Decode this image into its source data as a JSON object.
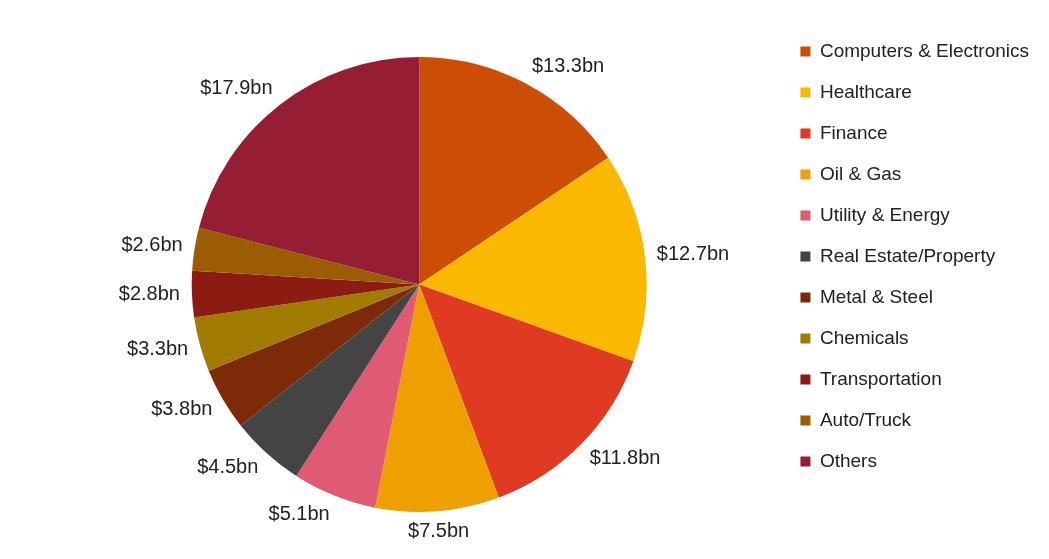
{
  "chart_data": {
    "type": "pie",
    "categories": [
      "Computers & Electronics",
      "Healthcare",
      "Finance",
      "Oil & Gas",
      "Utility & Energy",
      "Real Estate/Property",
      "Metal & Steel",
      "Chemicals",
      "Transportation",
      "Auto/Truck",
      "Others"
    ],
    "values": [
      13.3,
      12.7,
      11.8,
      7.5,
      5.1,
      4.5,
      3.8,
      3.3,
      2.8,
      2.6,
      17.9
    ],
    "value_labels": [
      "$13.3bn",
      "$12.7bn",
      "$11.8bn",
      "$7.5bn",
      "$5.1bn",
      "$4.5bn",
      "$3.8bn",
      "$3.3bn",
      "$2.8bn",
      "$2.6bn",
      "$17.9bn"
    ],
    "colors": [
      "#cc4e06",
      "#fbb800",
      "#e03a22",
      "#eea000",
      "#df5a72",
      "#444444",
      "#7c2a08",
      "#a27c02",
      "#8c1c12",
      "#9c5c02",
      "#951e34"
    ],
    "legend": "top right"
  }
}
